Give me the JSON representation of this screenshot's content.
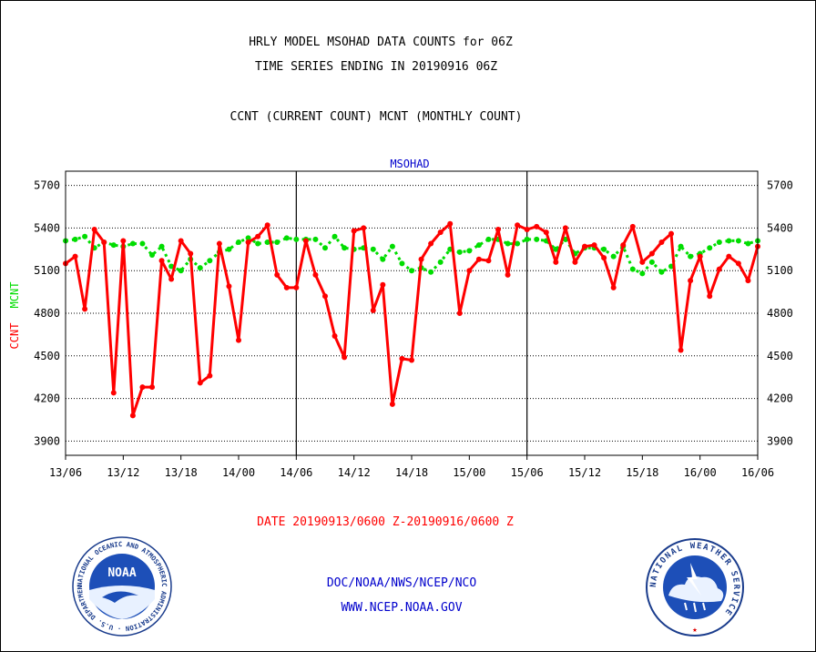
{
  "header": {
    "title_line1": "HRLY MODEL MSOHAD DATA COUNTS for 06Z",
    "title_line2": "TIME SERIES ENDING IN 20190916 06Z",
    "subtitle": "CCNT (CURRENT COUNT) MCNT (MONTHLY COUNT)"
  },
  "footer": {
    "date_range": "DATE 20190913/0600 Z-20190916/0600 Z",
    "org_line": "DOC/NOAA/NWS/NCEP/NCO",
    "url_line": "WWW.NCEP.NOAA.GOV"
  },
  "logos": {
    "noaa_text": "NOAA",
    "noaa_ring": "NATIONAL OCEANIC AND ATMOSPHERIC ADMINISTRATION · U.S. DEPARTMENT OF COMMERCE ·",
    "nws_ring": "NATIONAL WEATHER SERVICE"
  },
  "colors": {
    "ccnt": "#ff0000",
    "mcnt": "#00dd00",
    "title_blue": "#0000cc"
  },
  "chart_data": {
    "type": "line",
    "title": "MSOHAD",
    "ylabel_left_parts": [
      "CCNT",
      "MCNT"
    ],
    "ylim": [
      3800,
      5800
    ],
    "yticks": [
      3900,
      4200,
      4500,
      4800,
      5100,
      5400,
      5700
    ],
    "xlim": [
      0,
      72
    ],
    "xticks": [
      {
        "t": 0,
        "label": "13/06"
      },
      {
        "t": 6,
        "label": "13/12"
      },
      {
        "t": 12,
        "label": "13/18"
      },
      {
        "t": 18,
        "label": "14/00"
      },
      {
        "t": 24,
        "label": "14/06"
      },
      {
        "t": 30,
        "label": "14/12"
      },
      {
        "t": 36,
        "label": "14/18"
      },
      {
        "t": 42,
        "label": "15/00"
      },
      {
        "t": 48,
        "label": "15/06"
      },
      {
        "t": 54,
        "label": "15/12"
      },
      {
        "t": 60,
        "label": "15/18"
      },
      {
        "t": 66,
        "label": "16/00"
      },
      {
        "t": 72,
        "label": "16/06"
      }
    ],
    "day_boundaries": [
      24,
      48
    ],
    "grid": "horizontal dotted",
    "series": [
      {
        "name": "CCNT",
        "style": "solid",
        "values": [
          5150,
          5200,
          4830,
          5390,
          5300,
          4240,
          5310,
          4080,
          4280,
          4280,
          5170,
          5040,
          5310,
          5220,
          4310,
          4360,
          5290,
          4990,
          4610,
          5300,
          5340,
          5420,
          5070,
          4980,
          4980,
          5310,
          5070,
          4920,
          4640,
          4490,
          5380,
          5400,
          4820,
          5000,
          4160,
          4480,
          4470,
          5180,
          5290,
          5370,
          5430,
          4800,
          5100,
          5180,
          5170,
          5390,
          5070,
          5420,
          5390,
          5410,
          5370,
          5160,
          5400,
          5160,
          5270,
          5280,
          5190,
          4980,
          5280,
          5410,
          5160,
          5220,
          5300,
          5360,
          4540,
          5030,
          5200,
          4920,
          5110,
          5200,
          5150,
          5030,
          5270
        ]
      },
      {
        "name": "MCNT",
        "style": "dotted",
        "values": [
          5310,
          5320,
          5340,
          5260,
          5300,
          5280,
          5270,
          5290,
          5290,
          5210,
          5270,
          5130,
          5100,
          5180,
          5120,
          5170,
          5230,
          5250,
          5300,
          5330,
          5290,
          5300,
          5300,
          5330,
          5320,
          5320,
          5320,
          5260,
          5340,
          5260,
          5250,
          5260,
          5250,
          5180,
          5270,
          5150,
          5100,
          5120,
          5090,
          5160,
          5250,
          5230,
          5240,
          5280,
          5320,
          5320,
          5290,
          5290,
          5320,
          5320,
          5310,
          5250,
          5320,
          5220,
          5260,
          5260,
          5250,
          5200,
          5270,
          5110,
          5080,
          5160,
          5090,
          5130,
          5270,
          5200,
          5220,
          5260,
          5300,
          5310,
          5310,
          5290,
          5310
        ]
      }
    ]
  }
}
